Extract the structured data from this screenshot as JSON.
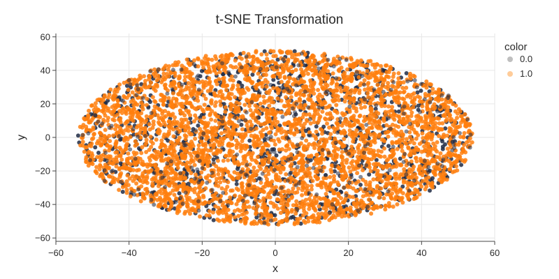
{
  "chart_data": {
    "type": "scatter",
    "title": "t-SNE Transformation",
    "xlabel": "x",
    "ylabel": "y",
    "xlim": [
      -60,
      60
    ],
    "ylim": [
      -62,
      62
    ],
    "x_ticks": [
      -60,
      -40,
      -20,
      0,
      20,
      40,
      60
    ],
    "y_ticks": [
      -60,
      -40,
      -20,
      0,
      20,
      40,
      60
    ],
    "x_tick_labels": [
      "−60",
      "−40",
      "−20",
      "0",
      "20",
      "40",
      "60"
    ],
    "y_tick_labels": [
      "−60",
      "−40",
      "−20",
      "0",
      "20",
      "40",
      "60"
    ],
    "grid": true,
    "legend": {
      "title": "color",
      "placement": "right"
    },
    "series": [
      {
        "name": "0.0",
        "color": "#1f2a44",
        "opacity": 0.85,
        "distribution": {
          "shape": "ellipse",
          "center": [
            0,
            0
          ],
          "x_radius": 54,
          "y_radius": 52,
          "approx_point_count": 1000
        }
      },
      {
        "name": "1.0",
        "color": "#ff7f0e",
        "opacity": 0.85,
        "distribution": {
          "shape": "ellipse",
          "center": [
            0,
            0
          ],
          "x_radius": 54,
          "y_radius": 52,
          "approx_point_count": 4000
        }
      }
    ]
  }
}
